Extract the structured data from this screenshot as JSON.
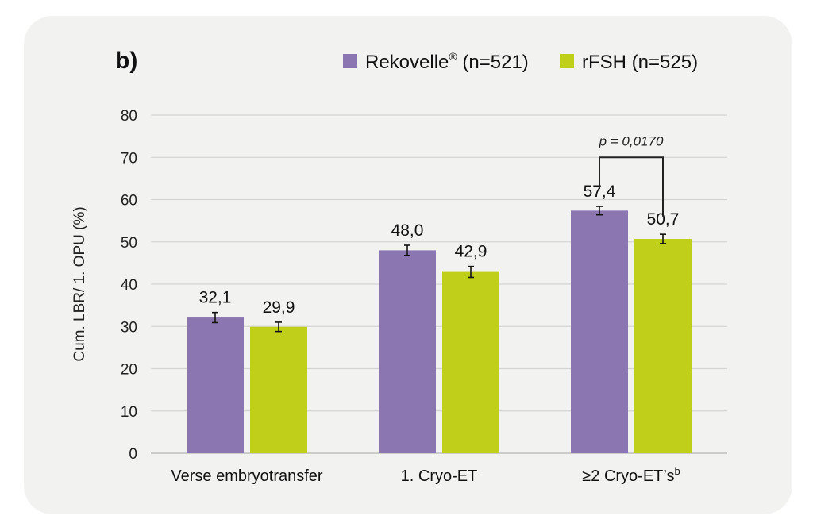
{
  "chart_data": {
    "type": "bar",
    "panel_label": "b)",
    "title": "",
    "xlabel": "",
    "ylabel": "Cum. LBR/ 1. OPU (%)",
    "ylim": [
      0,
      80
    ],
    "yticks": [
      0,
      10,
      20,
      30,
      40,
      50,
      60,
      70,
      80
    ],
    "grid": true,
    "legend_position": "top-right",
    "categories": [
      "Verse embryotransfer",
      "1. Cryo-ET",
      "≥2 Cryo-ET’s"
    ],
    "category_superscripts": [
      "",
      "",
      "b"
    ],
    "series": [
      {
        "name": "Rekovelle",
        "name_superscript": "®",
        "name_suffix": " (n=521)",
        "color": "#8b76b1",
        "values": [
          32.1,
          48.0,
          57.4
        ],
        "labels": [
          "32,1",
          "48,0",
          "57,4"
        ],
        "error": [
          1.2,
          1.2,
          1.0
        ]
      },
      {
        "name": "rFSH",
        "name_superscript": "",
        "name_suffix": " (n=525)",
        "color": "#c0cf1a",
        "values": [
          29.9,
          42.9,
          50.7
        ],
        "labels": [
          "29,9",
          "42,9",
          "50,7"
        ],
        "error": [
          1.1,
          1.3,
          1.1
        ]
      }
    ],
    "annotations": [
      {
        "text": "p = 0,0170",
        "category_index": 2,
        "bracket_y": 70
      }
    ]
  }
}
